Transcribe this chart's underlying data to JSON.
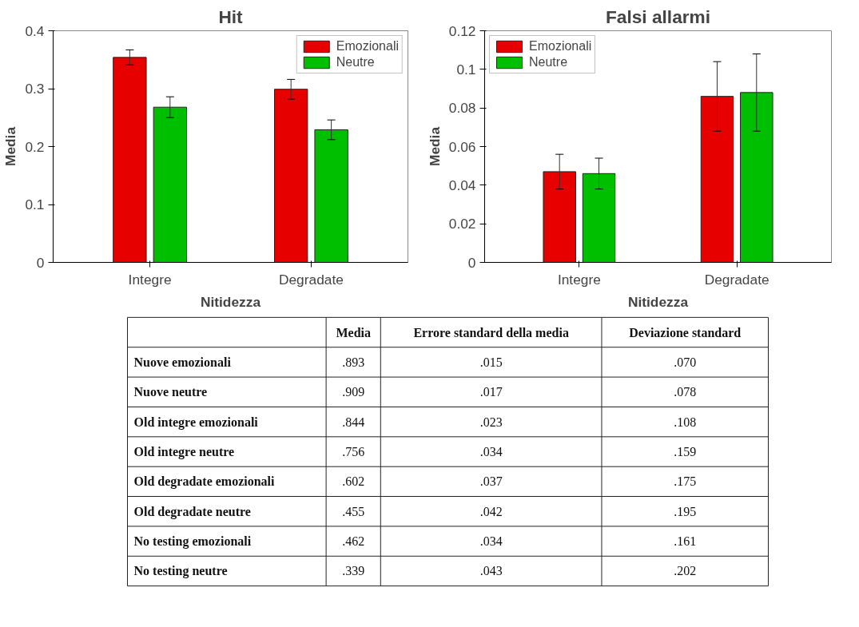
{
  "chart_data": [
    {
      "type": "bar",
      "title": "Hit",
      "xlabel": "Nitidezza",
      "ylabel": "Media",
      "categories": [
        "Integre",
        "Degradate"
      ],
      "ylim": [
        0,
        0.4
      ],
      "yticks": [
        0,
        0.1,
        0.2,
        0.3,
        0.4
      ],
      "grid": false,
      "legend": "top right",
      "series": [
        {
          "name": "Emozionali",
          "color": "#e60000",
          "values": [
            0.354,
            0.299
          ],
          "errors": [
            0.013,
            0.017
          ]
        },
        {
          "name": "Neutre",
          "color": "#00bf00",
          "values": [
            0.268,
            0.229
          ],
          "errors": [
            0.018,
            0.017
          ]
        }
      ]
    },
    {
      "type": "bar",
      "title": "Falsi allarmi",
      "xlabel": "Nitidezza",
      "ylabel": "Media",
      "categories": [
        "Integre",
        "Degradate"
      ],
      "ylim": [
        0,
        0.12
      ],
      "yticks": [
        0,
        0.02,
        0.04,
        0.06,
        0.08,
        0.1,
        0.12
      ],
      "grid": false,
      "legend": "top left",
      "series": [
        {
          "name": "Emozionali",
          "color": "#e60000",
          "values": [
            0.047,
            0.086
          ],
          "errors": [
            0.009,
            0.018
          ]
        },
        {
          "name": "Neutre",
          "color": "#00bf00",
          "values": [
            0.046,
            0.088
          ],
          "errors": [
            0.008,
            0.02
          ]
        }
      ]
    },
    {
      "type": "other",
      "categories": [
        null,
        "Media",
        "Errore standard della media",
        "Deviazione standard"
      ],
      "annotations": [
        "Nuove emozionali",
        ".893",
        ".015",
        ".070",
        "Nuove neutre",
        ".909",
        ".017",
        ".078",
        "Old integre emozionali",
        ".844",
        ".023",
        ".108",
        "Old integre neutre",
        ".756",
        ".034",
        ".159",
        "Old degradate emozionali",
        ".602",
        ".037",
        ".175",
        "Old degradate neutre",
        ".455",
        ".042",
        ".195",
        "No testing emozionali",
        ".462",
        ".034",
        ".161",
        "No testing neutre",
        ".339",
        ".043",
        ".202"
      ]
    }
  ]
}
